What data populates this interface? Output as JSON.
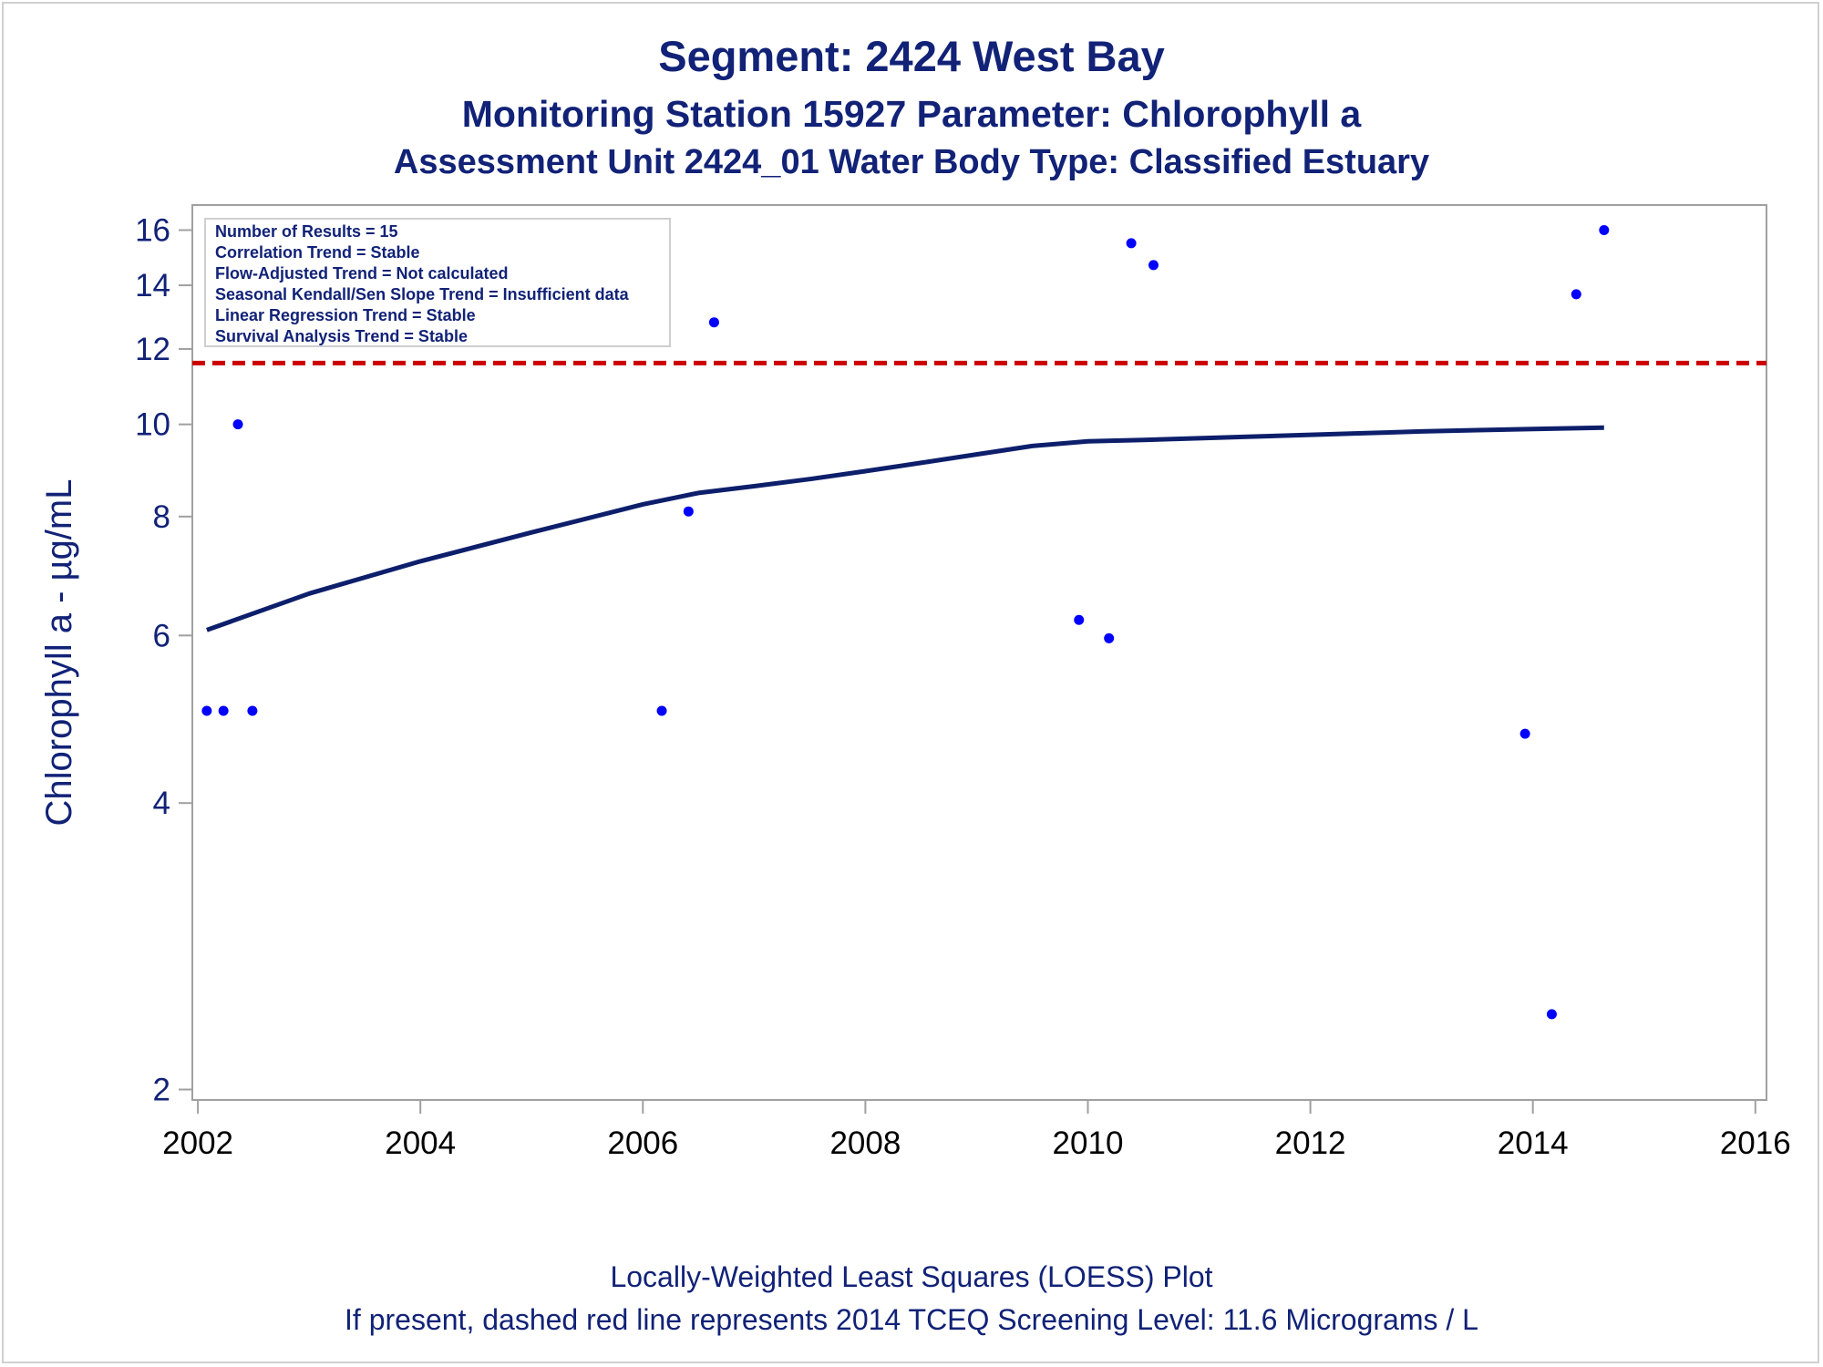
{
  "titles": {
    "line1": "Segment: 2424  West Bay",
    "line2": "Monitoring Station 15927 Parameter: Chlorophyll a",
    "line3": "Assessment Unit 2424_01   Water Body Type: Classified Estuary"
  },
  "footnotes": {
    "line1": "Locally-Weighted Least Squares (LOESS) Plot",
    "line2": "If present, dashed red line represents 2014 TCEQ Screening Level: 11.6 Micrograms / L"
  },
  "inset": {
    "lines": [
      "Number of Results = 15",
      "Correlation Trend = Stable",
      "Flow-Adjusted Trend = Not calculated",
      "Seasonal Kendall/Sen Slope Trend = Insufficient data",
      "Linear Regression Trend = Stable",
      "Survival Analysis Trend = Stable"
    ]
  },
  "colors": {
    "title": "#112277",
    "points": "#0000ff",
    "loess": "#0d1f6b",
    "reference": "#cc0000",
    "axis": "#a0a0a0"
  },
  "chart_data": {
    "type": "scatter",
    "title": "Segment: 2424  West Bay",
    "xlabel": "",
    "ylabel": "Chlorophyll a -  µg/mL",
    "y_scale": "log",
    "xlim": [
      2001.95,
      2016.1
    ],
    "ylim": [
      1.95,
      17.0
    ],
    "x_ticks": [
      2002,
      2004,
      2006,
      2008,
      2010,
      2012,
      2014,
      2016
    ],
    "x_tick_labels": [
      "2002",
      "2004",
      "2006",
      "2008",
      "2010",
      "2012",
      "2014",
      "2016"
    ],
    "y_ticks": [
      2,
      4,
      6,
      8,
      10,
      12,
      14,
      16
    ],
    "y_tick_labels": [
      "2",
      "4",
      "6",
      "8",
      "10",
      "12",
      "14",
      "16"
    ],
    "grid": false,
    "legend": "none",
    "series": [
      {
        "kind": "points",
        "x": [
          2002.08,
          2002.23,
          2002.36,
          2002.49,
          2006.17,
          2006.41,
          2006.64,
          2009.92,
          2010.19,
          2010.39,
          2010.59,
          2013.93,
          2014.17,
          2014.39,
          2014.64
        ],
        "y": [
          5.0,
          5.0,
          10.0,
          5.0,
          5.0,
          8.1,
          12.8,
          6.23,
          5.96,
          15.5,
          14.7,
          4.73,
          2.4,
          13.7,
          16.0
        ]
      },
      {
        "kind": "loess",
        "x": [
          2002.08,
          2003.0,
          2004.0,
          2005.0,
          2006.0,
          2006.5,
          2007.0,
          2007.5,
          2008.0,
          2008.5,
          2009.0,
          2009.5,
          2010.0,
          2010.5,
          2011.0,
          2011.5,
          2012.0,
          2012.5,
          2013.0,
          2013.5,
          2014.0,
          2014.64
        ],
        "y": [
          6.08,
          6.64,
          7.18,
          7.7,
          8.24,
          8.47,
          8.61,
          8.76,
          8.93,
          9.11,
          9.3,
          9.49,
          9.6,
          9.63,
          9.67,
          9.71,
          9.75,
          9.79,
          9.83,
          9.86,
          9.89,
          9.92
        ]
      }
    ],
    "reference_line": {
      "y": 11.6,
      "style": "dashed"
    }
  }
}
